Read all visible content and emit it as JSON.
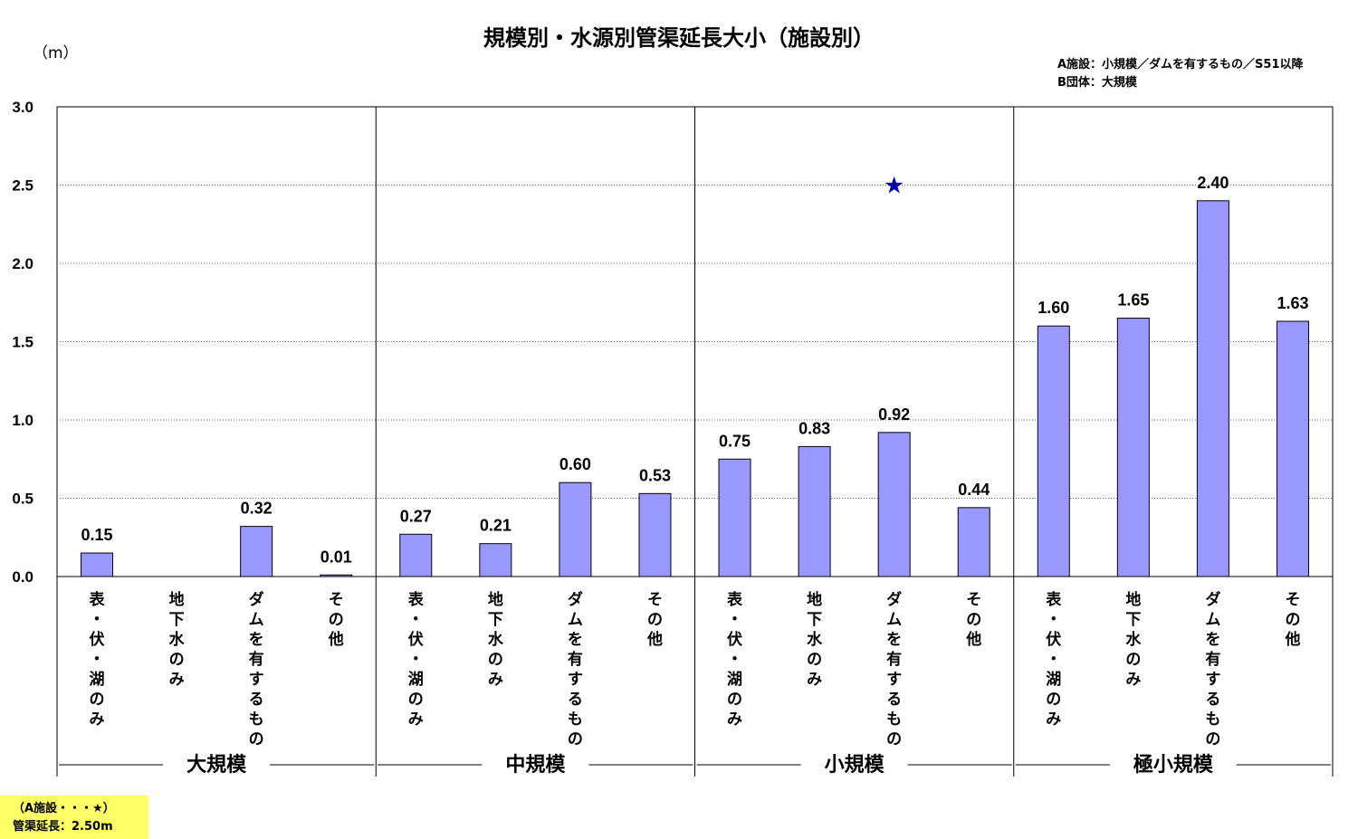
{
  "chart_data": {
    "type": "bar",
    "title": "規模別・水源別管渠延長大小（施設別）",
    "ylabel": "（m）",
    "ylim": [
      0,
      3.0
    ],
    "yticks": [
      "0.0",
      "0.5",
      "1.0",
      "1.5",
      "2.0",
      "2.5",
      "3.0"
    ],
    "grid": true,
    "bar_color": "#9999ff",
    "notes": [
      "A施設：小規模／ダムを有するもの／S51以降",
      "B団体：大規模"
    ],
    "groups": [
      {
        "name": "大規模",
        "categories": [
          "表・伏・湖のみ",
          "地下水のみ",
          "ダムを有するもの",
          "その他"
        ],
        "values": [
          0.15,
          null,
          0.32,
          0.01
        ],
        "labels": [
          "0.15",
          "",
          "0.32",
          "0.01"
        ]
      },
      {
        "name": "中規模",
        "categories": [
          "表・伏・湖のみ",
          "地下水のみ",
          "ダムを有するもの",
          "その他"
        ],
        "values": [
          0.27,
          0.21,
          0.6,
          0.53
        ],
        "labels": [
          "0.27",
          "0.21",
          "0.60",
          "0.53"
        ]
      },
      {
        "name": "小規模",
        "categories": [
          "表・伏・湖のみ",
          "地下水のみ",
          "ダムを有するもの",
          "その他"
        ],
        "values": [
          0.75,
          0.83,
          0.92,
          0.44
        ],
        "labels": [
          "0.75",
          "0.83",
          "0.92",
          "0.44"
        ]
      },
      {
        "name": "極小規模",
        "categories": [
          "表・伏・湖のみ",
          "地下水のみ",
          "ダムを有するもの",
          "その他"
        ],
        "values": [
          1.6,
          1.65,
          2.4,
          1.63
        ],
        "labels": [
          "1.60",
          "1.65",
          "2.40",
          "1.63"
        ]
      }
    ],
    "marker": {
      "symbol": "★",
      "color": "#0000aa",
      "group": 2,
      "category": 2,
      "value": 2.5
    },
    "annotation": {
      "line1": "（A施設・・・★）",
      "line2": "管渠延長：2.50m"
    }
  }
}
